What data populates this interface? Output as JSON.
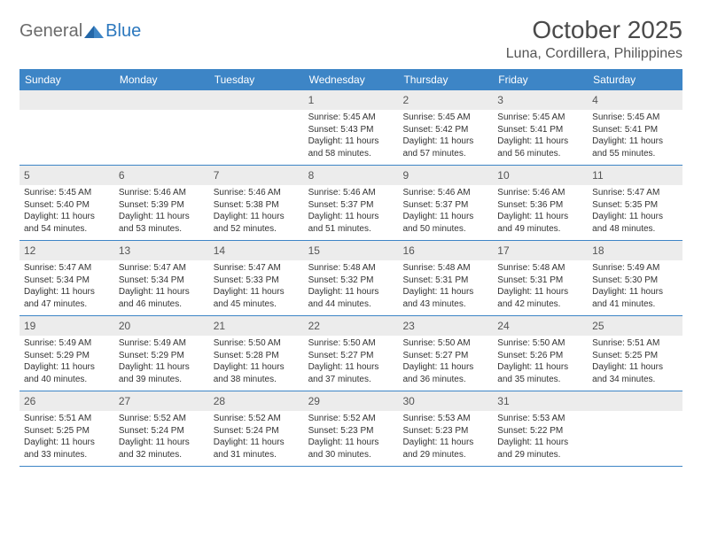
{
  "logo": {
    "general": "General",
    "blue": "Blue"
  },
  "title": "October 2025",
  "location": "Luna, Cordillera, Philippines",
  "colors": {
    "header_bg": "#3d85c6",
    "header_text": "#ffffff",
    "daynum_bg": "#ececec",
    "border": "#3d85c6",
    "logo_blue": "#2c78be",
    "logo_gray": "#6b6b6b"
  },
  "weekdays": [
    "Sunday",
    "Monday",
    "Tuesday",
    "Wednesday",
    "Thursday",
    "Friday",
    "Saturday"
  ],
  "weeks": [
    [
      {
        "empty": true
      },
      {
        "empty": true
      },
      {
        "empty": true
      },
      {
        "num": "1",
        "sunrise": "Sunrise: 5:45 AM",
        "sunset": "Sunset: 5:43 PM",
        "daylight": "Daylight: 11 hours and 58 minutes."
      },
      {
        "num": "2",
        "sunrise": "Sunrise: 5:45 AM",
        "sunset": "Sunset: 5:42 PM",
        "daylight": "Daylight: 11 hours and 57 minutes."
      },
      {
        "num": "3",
        "sunrise": "Sunrise: 5:45 AM",
        "sunset": "Sunset: 5:41 PM",
        "daylight": "Daylight: 11 hours and 56 minutes."
      },
      {
        "num": "4",
        "sunrise": "Sunrise: 5:45 AM",
        "sunset": "Sunset: 5:41 PM",
        "daylight": "Daylight: 11 hours and 55 minutes."
      }
    ],
    [
      {
        "num": "5",
        "sunrise": "Sunrise: 5:45 AM",
        "sunset": "Sunset: 5:40 PM",
        "daylight": "Daylight: 11 hours and 54 minutes."
      },
      {
        "num": "6",
        "sunrise": "Sunrise: 5:46 AM",
        "sunset": "Sunset: 5:39 PM",
        "daylight": "Daylight: 11 hours and 53 minutes."
      },
      {
        "num": "7",
        "sunrise": "Sunrise: 5:46 AM",
        "sunset": "Sunset: 5:38 PM",
        "daylight": "Daylight: 11 hours and 52 minutes."
      },
      {
        "num": "8",
        "sunrise": "Sunrise: 5:46 AM",
        "sunset": "Sunset: 5:37 PM",
        "daylight": "Daylight: 11 hours and 51 minutes."
      },
      {
        "num": "9",
        "sunrise": "Sunrise: 5:46 AM",
        "sunset": "Sunset: 5:37 PM",
        "daylight": "Daylight: 11 hours and 50 minutes."
      },
      {
        "num": "10",
        "sunrise": "Sunrise: 5:46 AM",
        "sunset": "Sunset: 5:36 PM",
        "daylight": "Daylight: 11 hours and 49 minutes."
      },
      {
        "num": "11",
        "sunrise": "Sunrise: 5:47 AM",
        "sunset": "Sunset: 5:35 PM",
        "daylight": "Daylight: 11 hours and 48 minutes."
      }
    ],
    [
      {
        "num": "12",
        "sunrise": "Sunrise: 5:47 AM",
        "sunset": "Sunset: 5:34 PM",
        "daylight": "Daylight: 11 hours and 47 minutes."
      },
      {
        "num": "13",
        "sunrise": "Sunrise: 5:47 AM",
        "sunset": "Sunset: 5:34 PM",
        "daylight": "Daylight: 11 hours and 46 minutes."
      },
      {
        "num": "14",
        "sunrise": "Sunrise: 5:47 AM",
        "sunset": "Sunset: 5:33 PM",
        "daylight": "Daylight: 11 hours and 45 minutes."
      },
      {
        "num": "15",
        "sunrise": "Sunrise: 5:48 AM",
        "sunset": "Sunset: 5:32 PM",
        "daylight": "Daylight: 11 hours and 44 minutes."
      },
      {
        "num": "16",
        "sunrise": "Sunrise: 5:48 AM",
        "sunset": "Sunset: 5:31 PM",
        "daylight": "Daylight: 11 hours and 43 minutes."
      },
      {
        "num": "17",
        "sunrise": "Sunrise: 5:48 AM",
        "sunset": "Sunset: 5:31 PM",
        "daylight": "Daylight: 11 hours and 42 minutes."
      },
      {
        "num": "18",
        "sunrise": "Sunrise: 5:49 AM",
        "sunset": "Sunset: 5:30 PM",
        "daylight": "Daylight: 11 hours and 41 minutes."
      }
    ],
    [
      {
        "num": "19",
        "sunrise": "Sunrise: 5:49 AM",
        "sunset": "Sunset: 5:29 PM",
        "daylight": "Daylight: 11 hours and 40 minutes."
      },
      {
        "num": "20",
        "sunrise": "Sunrise: 5:49 AM",
        "sunset": "Sunset: 5:29 PM",
        "daylight": "Daylight: 11 hours and 39 minutes."
      },
      {
        "num": "21",
        "sunrise": "Sunrise: 5:50 AM",
        "sunset": "Sunset: 5:28 PM",
        "daylight": "Daylight: 11 hours and 38 minutes."
      },
      {
        "num": "22",
        "sunrise": "Sunrise: 5:50 AM",
        "sunset": "Sunset: 5:27 PM",
        "daylight": "Daylight: 11 hours and 37 minutes."
      },
      {
        "num": "23",
        "sunrise": "Sunrise: 5:50 AM",
        "sunset": "Sunset: 5:27 PM",
        "daylight": "Daylight: 11 hours and 36 minutes."
      },
      {
        "num": "24",
        "sunrise": "Sunrise: 5:50 AM",
        "sunset": "Sunset: 5:26 PM",
        "daylight": "Daylight: 11 hours and 35 minutes."
      },
      {
        "num": "25",
        "sunrise": "Sunrise: 5:51 AM",
        "sunset": "Sunset: 5:25 PM",
        "daylight": "Daylight: 11 hours and 34 minutes."
      }
    ],
    [
      {
        "num": "26",
        "sunrise": "Sunrise: 5:51 AM",
        "sunset": "Sunset: 5:25 PM",
        "daylight": "Daylight: 11 hours and 33 minutes."
      },
      {
        "num": "27",
        "sunrise": "Sunrise: 5:52 AM",
        "sunset": "Sunset: 5:24 PM",
        "daylight": "Daylight: 11 hours and 32 minutes."
      },
      {
        "num": "28",
        "sunrise": "Sunrise: 5:52 AM",
        "sunset": "Sunset: 5:24 PM",
        "daylight": "Daylight: 11 hours and 31 minutes."
      },
      {
        "num": "29",
        "sunrise": "Sunrise: 5:52 AM",
        "sunset": "Sunset: 5:23 PM",
        "daylight": "Daylight: 11 hours and 30 minutes."
      },
      {
        "num": "30",
        "sunrise": "Sunrise: 5:53 AM",
        "sunset": "Sunset: 5:23 PM",
        "daylight": "Daylight: 11 hours and 29 minutes."
      },
      {
        "num": "31",
        "sunrise": "Sunrise: 5:53 AM",
        "sunset": "Sunset: 5:22 PM",
        "daylight": "Daylight: 11 hours and 29 minutes."
      },
      {
        "empty": true
      }
    ]
  ]
}
